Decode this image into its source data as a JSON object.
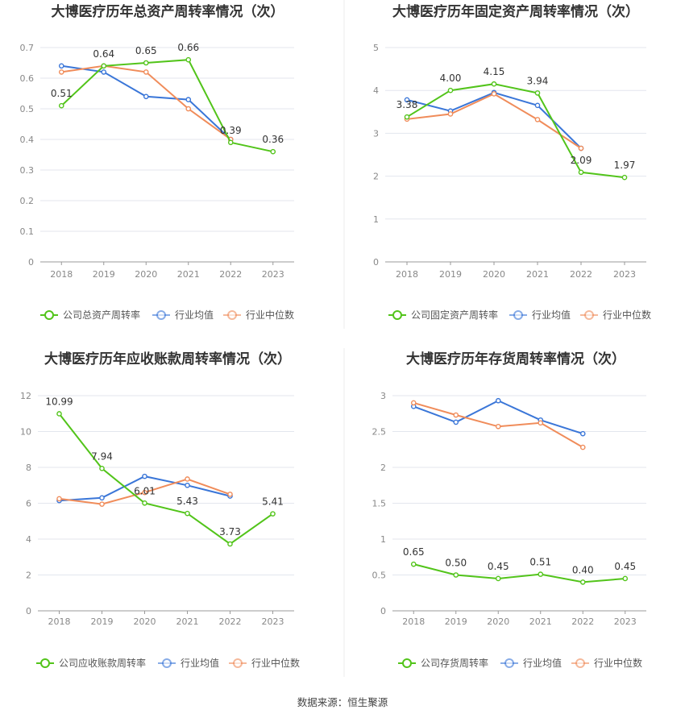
{
  "source_text": "数据来源：恒生聚源",
  "colors": {
    "company": "#52c41a",
    "industry_avg": "#3a76d8",
    "industry_median": "#f08c5a",
    "grid": "#e3e6ee",
    "axis_text": "#888888",
    "label_text": "#333333",
    "title_text": "#333333"
  },
  "chart_data": [
    {
      "type": "line",
      "title": "大博医疗历年总资产周转率情况（次）",
      "categories": [
        "2018",
        "2019",
        "2020",
        "2021",
        "2022",
        "2023"
      ],
      "ylim": [
        0,
        0.7
      ],
      "yticks": [
        "0",
        "0.1",
        "0.2",
        "0.3",
        "0.4",
        "0.5",
        "0.6",
        "0.7"
      ],
      "ytick_values": [
        0,
        0.1,
        0.2,
        0.3,
        0.4,
        0.5,
        0.6,
        0.7
      ],
      "grid": true,
      "legend_position": "bottom",
      "series": [
        {
          "name": "公司总资产周转率",
          "role": "company",
          "values": [
            0.51,
            0.64,
            0.65,
            0.66,
            0.39,
            0.36
          ],
          "labels": [
            "0.51",
            "0.64",
            "0.65",
            "0.66",
            "0.39",
            "0.36"
          ]
        },
        {
          "name": "行业均值",
          "role": "industry_avg",
          "values": [
            0.64,
            0.62,
            0.54,
            0.53,
            0.4,
            null
          ]
        },
        {
          "name": "行业中位数",
          "role": "industry_median",
          "values": [
            0.62,
            0.64,
            0.62,
            0.5,
            0.4,
            null
          ]
        }
      ]
    },
    {
      "type": "line",
      "title": "大博医疗历年固定资产周转率情况（次）",
      "categories": [
        "2018",
        "2019",
        "2020",
        "2021",
        "2022",
        "2023"
      ],
      "ylim": [
        0,
        5
      ],
      "yticks": [
        "0",
        "1",
        "2",
        "3",
        "4",
        "5"
      ],
      "ytick_values": [
        0,
        1,
        2,
        3,
        4,
        5
      ],
      "grid": true,
      "legend_position": "bottom",
      "series": [
        {
          "name": "公司固定资产周转率",
          "role": "company",
          "values": [
            3.38,
            4.0,
            4.15,
            3.94,
            2.09,
            1.97
          ],
          "labels": [
            "3.38",
            "4.00",
            "4.15",
            "3.94",
            "2.09",
            "1.97"
          ]
        },
        {
          "name": "行业均值",
          "role": "industry_avg",
          "values": [
            3.78,
            3.52,
            3.95,
            3.65,
            2.65,
            null
          ]
        },
        {
          "name": "行业中位数",
          "role": "industry_median",
          "values": [
            3.33,
            3.45,
            3.92,
            3.32,
            2.65,
            null
          ]
        }
      ]
    },
    {
      "type": "line",
      "title": "大博医疗历年应收账款周转率情况（次）",
      "categories": [
        "2018",
        "2019",
        "2020",
        "2021",
        "2022",
        "2023"
      ],
      "ylim": [
        0,
        12
      ],
      "yticks": [
        "0",
        "2",
        "4",
        "6",
        "8",
        "10",
        "12"
      ],
      "ytick_values": [
        0,
        2,
        4,
        6,
        8,
        10,
        12
      ],
      "grid": true,
      "legend_position": "bottom",
      "series": [
        {
          "name": "公司应收账款周转率",
          "role": "company",
          "values": [
            10.99,
            7.94,
            6.01,
            5.43,
            3.73,
            5.41
          ],
          "labels": [
            "10.99",
            "7.94",
            "6.01",
            "5.43",
            "3.73",
            "5.41"
          ]
        },
        {
          "name": "行业均值",
          "role": "industry_avg",
          "values": [
            6.15,
            6.3,
            7.5,
            7.0,
            6.4,
            null
          ]
        },
        {
          "name": "行业中位数",
          "role": "industry_median",
          "values": [
            6.25,
            5.95,
            6.6,
            7.35,
            6.5,
            null
          ]
        }
      ]
    },
    {
      "type": "line",
      "title": "大博医疗历年存货周转率情况（次）",
      "categories": [
        "2018",
        "2019",
        "2020",
        "2021",
        "2022",
        "2023"
      ],
      "ylim": [
        0,
        3
      ],
      "yticks": [
        "0",
        "0.5",
        "1",
        "1.5",
        "2",
        "2.5",
        "3"
      ],
      "ytick_values": [
        0,
        0.5,
        1,
        1.5,
        2,
        2.5,
        3
      ],
      "grid": true,
      "legend_position": "bottom",
      "series": [
        {
          "name": "公司存货周转率",
          "role": "company",
          "values": [
            0.65,
            0.5,
            0.45,
            0.51,
            0.4,
            0.45
          ],
          "labels": [
            "0.65",
            "0.50",
            "0.45",
            "0.51",
            "0.40",
            "0.45"
          ]
        },
        {
          "name": "行业均值",
          "role": "industry_avg",
          "values": [
            2.85,
            2.63,
            2.93,
            2.66,
            2.47,
            null
          ]
        },
        {
          "name": "行业中位数",
          "role": "industry_median",
          "values": [
            2.9,
            2.73,
            2.57,
            2.62,
            2.28,
            null
          ]
        }
      ]
    }
  ]
}
